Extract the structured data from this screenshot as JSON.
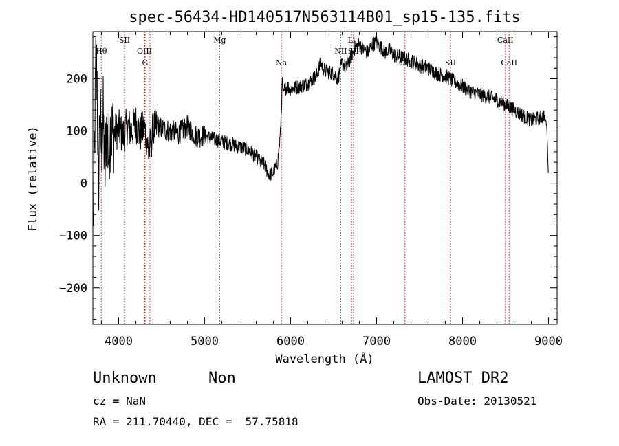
{
  "chart_data": {
    "type": "line",
    "title": "spec-56434-HD140517N563114B01_sp15-135.fits",
    "xlabel": "Wavelength (Å)",
    "ylabel": "Flux (relative)",
    "xlim": [
      3700,
      9100
    ],
    "ylim": [
      -270,
      290
    ],
    "xticks": [
      4000,
      5000,
      6000,
      7000,
      8000,
      9000
    ],
    "xtick_labels": [
      "4000",
      "5000",
      "6000",
      "7000",
      "8000",
      "9000"
    ],
    "yticks": [
      -200,
      -100,
      0,
      100,
      200
    ],
    "ytick_labels": [
      "−200",
      "−100",
      "0",
      "100",
      "200"
    ],
    "grid": false,
    "spectral_lines": [
      {
        "label": "Hθ",
        "x": 3798,
        "row": 1
      },
      {
        "label": "SII",
        "x": 4068,
        "row": 0
      },
      {
        "label": "OIII",
        "x": 4300,
        "row": 1
      },
      {
        "label": "G",
        "x": 4307,
        "row": 2
      },
      {
        "label": "OIII",
        "x": 4363,
        "row": -1
      },
      {
        "label": "Mg",
        "x": 5175,
        "row": 0
      },
      {
        "label": "Na",
        "x": 5893,
        "row": 2
      },
      {
        "label": "NII",
        "x": 6583,
        "row": 1
      },
      {
        "label": "Li",
        "x": 6708,
        "row": 0
      },
      {
        "label": "SII",
        "x": 6731,
        "row": 1
      },
      {
        "label": "OII",
        "x": 7330,
        "row": 2
      },
      {
        "label": "SII",
        "x": 7860,
        "row": 2
      },
      {
        "label": "CaII",
        "x": 8498,
        "row": 0
      },
      {
        "label": "CaII",
        "x": 8542,
        "row": 2
      }
    ],
    "series": [
      {
        "x": [
          3705,
          3720,
          3735,
          3750,
          3765,
          3780,
          3800,
          3820,
          3840,
          3860,
          3880,
          3900,
          3950,
          4000,
          4050,
          4100,
          4150,
          4200,
          4250,
          4300,
          4330,
          4350,
          4400,
          4450,
          4500,
          4600,
          4700,
          4800,
          4900,
          5000,
          5100,
          5200,
          5300,
          5400,
          5500,
          5600,
          5650,
          5700,
          5750,
          5800,
          5850,
          5880,
          5895,
          5905,
          5915,
          5930,
          5960,
          6000,
          6100,
          6200,
          6300,
          6350,
          6400,
          6500,
          6550,
          6600,
          6650,
          6700,
          6750,
          6800,
          6850,
          6900,
          6950,
          7000,
          7050,
          7100,
          7150,
          7200,
          7300,
          7400,
          7500,
          7600,
          7700,
          7800,
          7900,
          8000,
          8100,
          8200,
          8300,
          8400,
          8500,
          8600,
          8700,
          8800,
          8900,
          8950,
          8980,
          9000
        ],
        "y": [
          -80,
          60,
          240,
          200,
          -40,
          150,
          60,
          130,
          10,
          120,
          50,
          100,
          95,
          105,
          90,
          110,
          100,
          115,
          95,
          105,
          85,
          55,
          100,
          110,
          105,
          100,
          95,
          110,
          90,
          90,
          85,
          80,
          75,
          70,
          65,
          50,
          40,
          35,
          15,
          20,
          40,
          90,
          150,
          200,
          165,
          180,
          185,
          180,
          185,
          190,
          205,
          230,
          215,
          210,
          200,
          230,
          220,
          240,
          260,
          265,
          255,
          250,
          265,
          270,
          260,
          250,
          255,
          245,
          240,
          235,
          225,
          220,
          210,
          205,
          195,
          185,
          175,
          170,
          165,
          160,
          150,
          140,
          130,
          120,
          125,
          130,
          110,
          10
        ]
      }
    ]
  },
  "footer": {
    "object_class": "Unknown",
    "subclass": "Non",
    "survey": "LAMOST DR2",
    "redshift": "cz = NaN",
    "obs_date": "Obs-Date: 20130521",
    "coords": "RA = 211.70440, DEC =  57.75818"
  }
}
